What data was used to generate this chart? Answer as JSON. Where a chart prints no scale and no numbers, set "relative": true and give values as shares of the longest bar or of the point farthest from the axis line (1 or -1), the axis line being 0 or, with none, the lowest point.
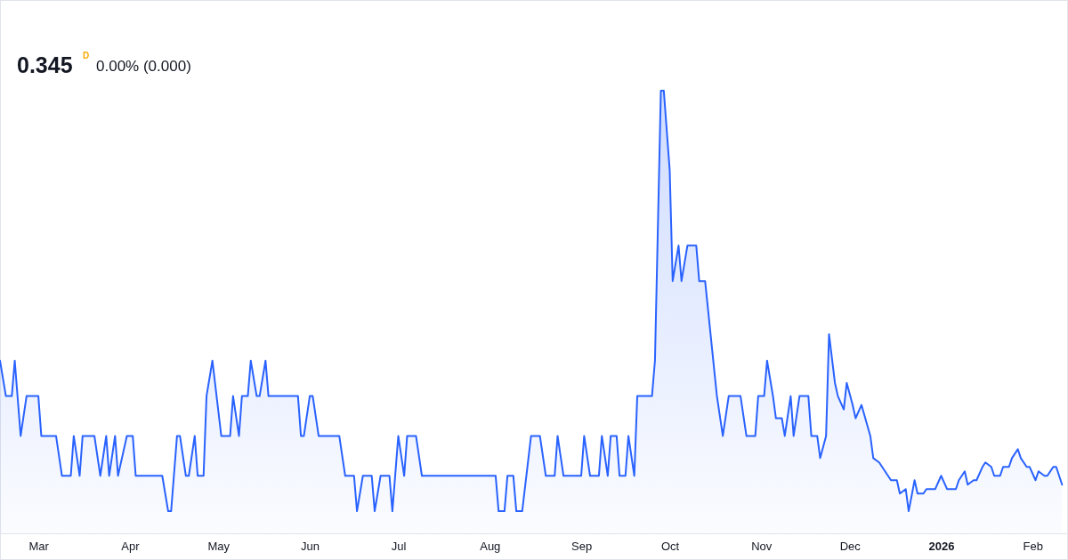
{
  "chart_data": {
    "type": "area",
    "relative": true,
    "grid": false,
    "annotations": [
      "0.345",
      "D",
      "0.00% (0.000)"
    ],
    "xlim": [
      "2025-02-16",
      "2026-02-13"
    ],
    "xticks": [
      {
        "value": "2025-03-01",
        "label": "Mar"
      },
      {
        "value": "2025-04-01",
        "label": "Apr"
      },
      {
        "value": "2025-05-01",
        "label": "May"
      },
      {
        "value": "2025-06-01",
        "label": "Jun"
      },
      {
        "value": "2025-07-01",
        "label": "Jul"
      },
      {
        "value": "2025-08-01",
        "label": "Aug"
      },
      {
        "value": "2025-09-01",
        "label": "Sep"
      },
      {
        "value": "2025-10-01",
        "label": "Oct"
      },
      {
        "value": "2025-11-01",
        "label": "Nov"
      },
      {
        "value": "2025-12-01",
        "label": "Dec"
      },
      {
        "value": "2026-01-01",
        "label": "2026"
      },
      {
        "value": "2026-02-01",
        "label": "Feb"
      }
    ],
    "series": [
      {
        "color": "#2962ff",
        "x": [
          "2025-02-16",
          "2025-02-18",
          "2025-02-20",
          "2025-02-21",
          "2025-02-23",
          "2025-02-25",
          "2025-03-01",
          "2025-03-02",
          "2025-03-07",
          "2025-03-09",
          "2025-03-12",
          "2025-03-13",
          "2025-03-15",
          "2025-03-16",
          "2025-03-20",
          "2025-03-22",
          "2025-03-24",
          "2025-03-25",
          "2025-03-27",
          "2025-03-28",
          "2025-03-31",
          "2025-04-02",
          "2025-04-03",
          "2025-04-12",
          "2025-04-14",
          "2025-04-15",
          "2025-04-17",
          "2025-04-18",
          "2025-04-20",
          "2025-04-21",
          "2025-04-23",
          "2025-04-24",
          "2025-04-26",
          "2025-04-27",
          "2025-04-29",
          "2025-05-02",
          "2025-05-05",
          "2025-05-06",
          "2025-05-08",
          "2025-05-09",
          "2025-05-11",
          "2025-05-12",
          "2025-05-14",
          "2025-05-15",
          "2025-05-17",
          "2025-05-18",
          "2025-05-28",
          "2025-05-29",
          "2025-05-30",
          "2025-06-01",
          "2025-06-02",
          "2025-06-04",
          "2025-06-11",
          "2025-06-13",
          "2025-06-16",
          "2025-06-17",
          "2025-06-19",
          "2025-06-22",
          "2025-06-23",
          "2025-06-25",
          "2025-06-28",
          "2025-06-29",
          "2025-07-01",
          "2025-07-03",
          "2025-07-04",
          "2025-07-07",
          "2025-07-09",
          "2025-08-03",
          "2025-08-04",
          "2025-08-06",
          "2025-08-07",
          "2025-08-09",
          "2025-08-10",
          "2025-08-12",
          "2025-08-15",
          "2025-08-18",
          "2025-08-20",
          "2025-08-23",
          "2025-08-24",
          "2025-08-26",
          "2025-09-01",
          "2025-09-02",
          "2025-09-04",
          "2025-09-07",
          "2025-09-08",
          "2025-09-10",
          "2025-09-11",
          "2025-09-13",
          "2025-09-14",
          "2025-09-16",
          "2025-09-17",
          "2025-09-19",
          "2025-09-20",
          "2025-09-25",
          "2025-09-26",
          "2025-09-28",
          "2025-09-29",
          "2025-10-01",
          "2025-10-02",
          "2025-10-04",
          "2025-10-05",
          "2025-10-07",
          "2025-10-10",
          "2025-10-11",
          "2025-10-13",
          "2025-10-17",
          "2025-10-19",
          "2025-10-21",
          "2025-10-25",
          "2025-10-27",
          "2025-10-30",
          "2025-10-31",
          "2025-11-02",
          "2025-11-03",
          "2025-11-05",
          "2025-11-06",
          "2025-11-08",
          "2025-11-09",
          "2025-11-11",
          "2025-11-12",
          "2025-11-14",
          "2025-11-17",
          "2025-11-18",
          "2025-11-20",
          "2025-11-21",
          "2025-11-23",
          "2025-11-24",
          "2025-11-26",
          "2025-11-27",
          "2025-11-29",
          "2025-11-30",
          "2025-12-02",
          "2025-12-03",
          "2025-12-05",
          "2025-12-08",
          "2025-12-09",
          "2025-12-11",
          "2025-12-12",
          "2025-12-14",
          "2025-12-15",
          "2025-12-17",
          "2025-12-18",
          "2025-12-20",
          "2025-12-21",
          "2025-12-23",
          "2025-12-24",
          "2025-12-26",
          "2025-12-27",
          "2025-12-29",
          "2025-12-30",
          "2026-01-01",
          "2026-01-03",
          "2026-01-04",
          "2026-01-06",
          "2026-01-07",
          "2026-01-09",
          "2026-01-10",
          "2026-01-12",
          "2026-01-13",
          "2026-01-15",
          "2026-01-16",
          "2026-01-18",
          "2026-01-19",
          "2026-01-21",
          "2026-01-22",
          "2026-01-24",
          "2026-01-25",
          "2026-01-27",
          "2026-01-28",
          "2026-01-30",
          "2026-01-31",
          "2026-02-02",
          "2026-02-03",
          "2026-02-05",
          "2026-02-06",
          "2026-02-08",
          "2026-02-09",
          "2026-02-11"
        ],
        "values": [
          0.39,
          0.31,
          0.31,
          0.39,
          0.22,
          0.31,
          0.31,
          0.22,
          0.22,
          0.13,
          0.13,
          0.22,
          0.13,
          0.22,
          0.22,
          0.13,
          0.22,
          0.13,
          0.22,
          0.13,
          0.22,
          0.22,
          0.13,
          0.13,
          0.05,
          0.05,
          0.22,
          0.22,
          0.13,
          0.13,
          0.22,
          0.13,
          0.13,
          0.31,
          0.39,
          0.22,
          0.22,
          0.31,
          0.22,
          0.31,
          0.31,
          0.39,
          0.31,
          0.31,
          0.39,
          0.31,
          0.31,
          0.22,
          0.22,
          0.31,
          0.31,
          0.22,
          0.22,
          0.13,
          0.13,
          0.05,
          0.13,
          0.13,
          0.05,
          0.13,
          0.13,
          0.05,
          0.22,
          0.13,
          0.22,
          0.22,
          0.13,
          0.13,
          0.05,
          0.05,
          0.13,
          0.13,
          0.05,
          0.05,
          0.22,
          0.22,
          0.13,
          0.13,
          0.22,
          0.13,
          0.13,
          0.22,
          0.13,
          0.13,
          0.22,
          0.13,
          0.22,
          0.22,
          0.13,
          0.13,
          0.22,
          0.13,
          0.31,
          0.31,
          0.39,
          1,
          1,
          0.82,
          0.57,
          0.65,
          0.57,
          0.65,
          0.65,
          0.57,
          0.57,
          0.31,
          0.22,
          0.31,
          0.31,
          0.22,
          0.22,
          0.31,
          0.31,
          0.39,
          0.31,
          0.26,
          0.26,
          0.22,
          0.31,
          0.22,
          0.31,
          0.31,
          0.22,
          0.22,
          0.17,
          0.22,
          0.45,
          0.34,
          0.31,
          0.28,
          0.34,
          0.29,
          0.26,
          0.29,
          0.22,
          0.17,
          0.16,
          0.15,
          0.13,
          0.12,
          0.12,
          0.09,
          0.1,
          0.05,
          0.12,
          0.09,
          0.09,
          0.1,
          0.1,
          0.1,
          0.13,
          0.1,
          0.1,
          0.1,
          0.12,
          0.14,
          0.11,
          0.12,
          0.12,
          0.15,
          0.16,
          0.15,
          0.13,
          0.13,
          0.15,
          0.15,
          0.17,
          0.19,
          0.17,
          0.15,
          0.15,
          0.12,
          0.14,
          0.13,
          0.13,
          0.15,
          0.15,
          0.11
        ]
      }
    ]
  }
}
